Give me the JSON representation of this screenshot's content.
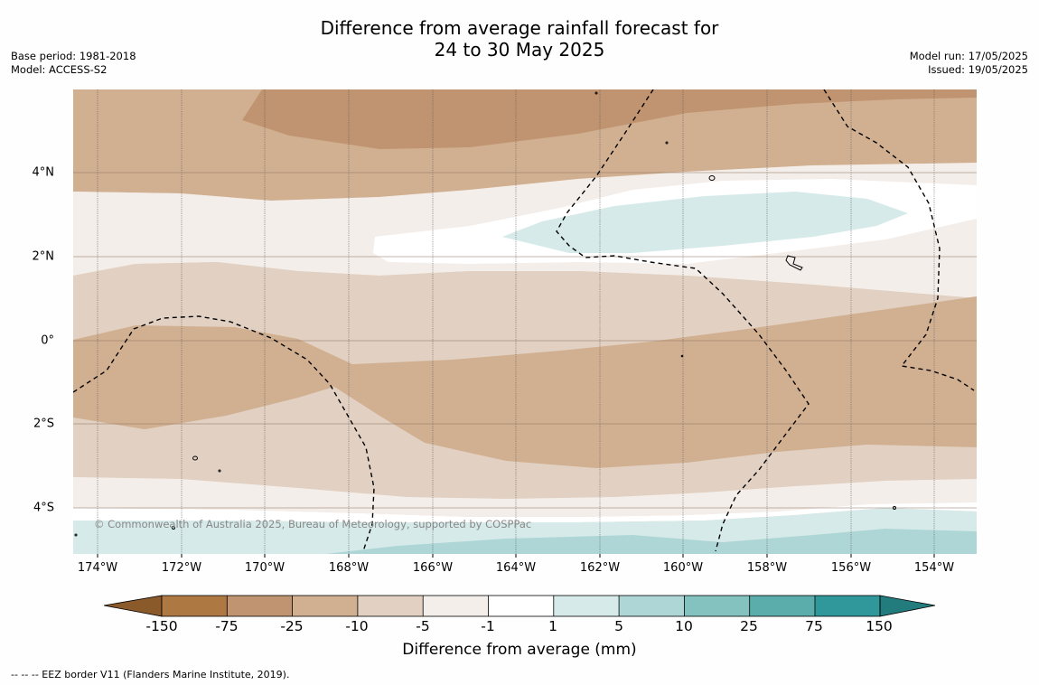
{
  "title": {
    "line1": "Difference from average rainfall forecast for",
    "line2": "24 to 30 May 2025"
  },
  "meta": {
    "base_period": "Base period: 1981-2018",
    "model": "Model: ACCESS-S2",
    "model_run": "Model run: 17/05/2025",
    "issued": "Issued: 19/05/2025"
  },
  "map": {
    "lat_labels": [
      "4°N",
      "2°N",
      "0°",
      "2°S",
      "4°S"
    ],
    "lon_labels": [
      "174°W",
      "172°W",
      "170°W",
      "168°W",
      "166°W",
      "164°W",
      "162°W",
      "160°W",
      "158°W",
      "156°W",
      "154°W"
    ],
    "copyright": "© Commonwealth of Australia 2025, Bureau of Meteorology, supported by COSPPac"
  },
  "colorbar": {
    "title": "Difference from average (mm)",
    "ticks": [
      "-150",
      "-75",
      "-25",
      "-10",
      "-5",
      "-1",
      "1",
      "5",
      "10",
      "25",
      "75",
      "150"
    ],
    "colors": [
      "#8a5a2b",
      "#ae7843",
      "#c09470",
      "#d1b092",
      "#e2d1c2",
      "#f4eeea",
      "#ffffff",
      "#d6eae9",
      "#aed6d6",
      "#84c2c0",
      "#5aadab",
      "#30989a",
      "#227b7d"
    ]
  },
  "footer": {
    "legend_text": "--  --  -- EEZ border V11 (Flanders Marine Institute, 2019)."
  }
}
